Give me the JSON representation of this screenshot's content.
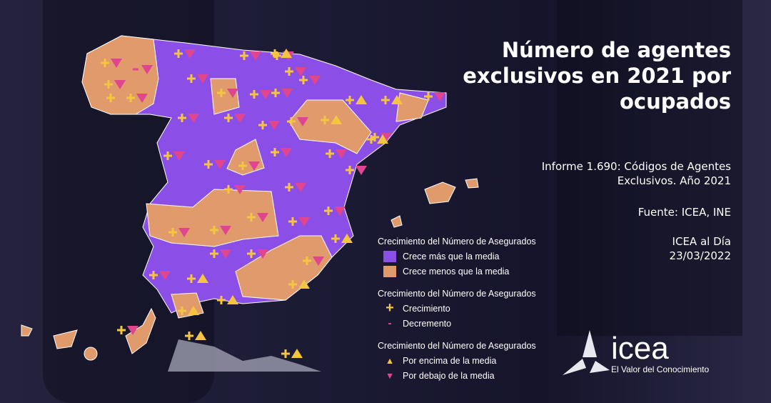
{
  "title": "Número de agentes exclusivos en 2021 por ocupados",
  "report": "Informe 1.690: Códigos de Agentes Exclusivos. Año 2021",
  "source": "Fuente: ICEA, INE",
  "publication": "ICEA al Día",
  "date": "23/03/2022",
  "logo": {
    "word": "icea",
    "tagline": "El Valor del Conocimiento"
  },
  "colors": {
    "above_growth": "#8b4fe8",
    "below_growth": "#e09a6c",
    "plus": "#f5c542",
    "minus": "#e0468f",
    "above_marker": "#f5c542",
    "below_marker": "#e0468f"
  },
  "legend": [
    {
      "heading": "Crecimiento del Número de Asegurados",
      "items": [
        {
          "label": "Crece más que la media",
          "kind": "swatch",
          "color": "#8b4fe8"
        },
        {
          "label": "Crece menos que la media",
          "kind": "swatch",
          "color": "#e09a6c"
        }
      ]
    },
    {
      "heading": "Crecimiento del Número de Asegurados",
      "items": [
        {
          "label": "Crecimiento",
          "kind": "plus"
        },
        {
          "label": "Decremento",
          "kind": "minus"
        }
      ]
    },
    {
      "heading": "Crecimiento del Número de Asegurados",
      "items": [
        {
          "label": "Por encima de la media",
          "kind": "up"
        },
        {
          "label": "Por debajo de la media",
          "kind": "down"
        }
      ]
    }
  ],
  "markers": [
    {
      "sign": "+",
      "tri": "down"
    },
    {
      "sign": "-",
      "tri": "down"
    },
    {
      "sign": "+",
      "tri": "down"
    },
    {
      "sign": "+",
      "tri": "down"
    },
    {
      "sign": "+",
      "tri": "none"
    },
    {
      "sign": "+",
      "tri": "down"
    },
    {
      "sign": "+",
      "tri": "down"
    },
    {
      "sign": "+",
      "tri": "down"
    },
    {
      "sign": "+",
      "tri": "down"
    },
    {
      "sign": "+",
      "tri": "up"
    },
    {
      "sign": "+",
      "tri": "down"
    },
    {
      "sign": "+",
      "tri": "down"
    },
    {
      "sign": "+",
      "tri": "down"
    },
    {
      "sign": "+",
      "tri": "down"
    },
    {
      "sign": "+",
      "tri": "down"
    },
    {
      "sign": "+",
      "tri": "up"
    },
    {
      "sign": "+",
      "tri": "up"
    },
    {
      "sign": "+",
      "tri": "down"
    },
    {
      "sign": "+",
      "tri": "down"
    },
    {
      "sign": "+",
      "tri": "down"
    },
    {
      "sign": "+",
      "tri": "down"
    },
    {
      "sign": "+",
      "tri": "down"
    },
    {
      "sign": "+",
      "tri": "up"
    },
    {
      "sign": "+",
      "tri": "down"
    },
    {
      "sign": "+",
      "tri": "down"
    },
    {
      "sign": "+",
      "tri": "down"
    },
    {
      "sign": "+",
      "tri": "down"
    },
    {
      "sign": "+",
      "tri": "down"
    },
    {
      "sign": "+",
      "tri": "down"
    },
    {
      "sign": "+",
      "tri": "down"
    },
    {
      "sign": "+",
      "tri": "down"
    },
    {
      "sign": "+",
      "tri": "down"
    },
    {
      "sign": "+",
      "tri": "down"
    },
    {
      "sign": "+",
      "tri": "up"
    },
    {
      "sign": "+",
      "tri": "down"
    },
    {
      "sign": "+",
      "tri": "down"
    },
    {
      "sign": "+",
      "tri": "down"
    },
    {
      "sign": "+",
      "tri": "down"
    },
    {
      "sign": "+",
      "tri": "up"
    },
    {
      "sign": "+",
      "tri": "down"
    },
    {
      "sign": "+",
      "tri": "up"
    },
    {
      "sign": "+",
      "tri": "down"
    },
    {
      "sign": "+",
      "tri": "up"
    },
    {
      "sign": "+",
      "tri": "down"
    },
    {
      "sign": "+",
      "tri": "down"
    },
    {
      "sign": "+",
      "tri": "up"
    },
    {
      "sign": "+",
      "tri": "down"
    },
    {
      "sign": "+",
      "tri": "up"
    },
    {
      "sign": "+",
      "tri": "up"
    },
    {
      "sign": "+",
      "tri": "up"
    }
  ]
}
